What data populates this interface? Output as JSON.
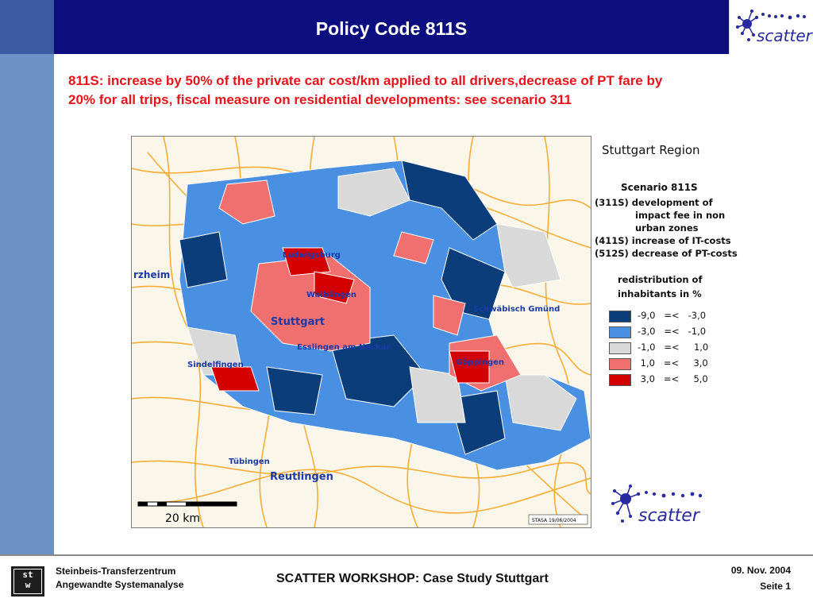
{
  "header": {
    "title": "Policy Code 811S"
  },
  "logo": {
    "text": "scatter"
  },
  "subtitle": {
    "line1": "811S: increase by 50% of the private car cost/km applied to all drivers,decrease of PT fare by",
    "line2": "20% for all trips, fiscal measure on residential developments: see scenario 311"
  },
  "map": {
    "labels": {
      "ludwigsburg": "Ludwigsburg",
      "pforzheim": "rzheim",
      "waiblingen": "Waiblingen",
      "schwaebisch_gmuend": "Schwäbisch Gmünd",
      "stuttgart": "Stuttgart",
      "esslingen": "Esslingen am Neckar",
      "sindelfingen": "Sindelfingen",
      "goeppingen": "Göppingen",
      "tuebingen": "Tübingen",
      "reutlingen": "Reutlingen"
    },
    "scale_label": "20 km",
    "stamp": "STASA 19/06/2004"
  },
  "legend": {
    "region": "Stuttgart Region",
    "scenario": "Scenario 811S",
    "items": [
      "(311S) development of",
      "impact fee in non",
      "urban zones",
      "(411S) increase of IT-costs",
      "(512S) decrease of PT-costs"
    ],
    "redistribution_line1": "redistribution of",
    "redistribution_line2": "inhabitants in %",
    "classes": [
      {
        "range": "-9,0   =<   -3,0",
        "color": "#0b3d7a"
      },
      {
        "range": "-3,0   =<   -1,0",
        "color": "#4a90e2"
      },
      {
        "range": "-1,0   =<     1,0",
        "color": "#d9d9d9"
      },
      {
        "range": " 1,0   =<     3,0",
        "color": "#f07070"
      },
      {
        "range": " 3,0   =<     5,0",
        "color": "#d40000"
      }
    ]
  },
  "footer": {
    "org_line1": "Steinbeis-Transferzentrum",
    "org_line2": "Angewandte Systemanalyse",
    "workshop": "SCATTER WORKSHOP: Case Study Stuttgart",
    "date": "09. Nov.  2004",
    "page": "Seite 1",
    "stw_top": "st",
    "stw_bottom": "w"
  },
  "colors": {
    "header_bg": "#0c0e7f",
    "sidebar": "#6d93c6",
    "subtitle_text": "#e8141b",
    "roads": "#f5a623"
  }
}
